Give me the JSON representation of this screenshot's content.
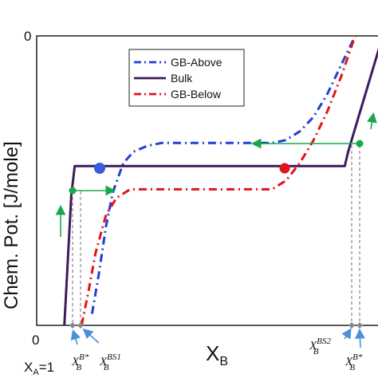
{
  "chart_data": {
    "type": "line",
    "xlabel": "X",
    "xlabel_sub": "B",
    "ylabel": "Chem. Pot. [J/mole]",
    "x_tick_labels": [
      "0"
    ],
    "y_tick_labels": [
      "0"
    ],
    "x_corner_label": "X",
    "x_corner_label_sub": "A",
    "x_corner_label_suffix": "=1",
    "legend": {
      "position": "top-center"
    },
    "series": [
      {
        "name": "GB-Above",
        "color": "#1f3fd6",
        "style": "dash-dot",
        "x": [
          0.16,
          0.18,
          0.2,
          0.22,
          0.25,
          0.28,
          0.32,
          0.36,
          0.5,
          0.6,
          0.68,
          0.72,
          0.76,
          0.8,
          0.84,
          0.88,
          0.92
        ],
        "y": [
          0.04,
          0.18,
          0.34,
          0.46,
          0.56,
          0.6,
          0.62,
          0.63,
          0.63,
          0.63,
          0.63,
          0.64,
          0.67,
          0.72,
          0.8,
          0.9,
          1.0
        ]
      },
      {
        "name": "Bulk",
        "color": "#3d1a5c",
        "style": "solid",
        "x": [
          0.08,
          0.1,
          0.11,
          0.5,
          0.89,
          0.9,
          0.93,
          1.0
        ],
        "y": [
          0.0,
          0.45,
          0.55,
          0.55,
          0.55,
          0.6,
          0.72,
          1.0
        ]
      },
      {
        "name": "GB-Below",
        "color": "#e0141b",
        "style": "dash-dot",
        "x": [
          0.13,
          0.15,
          0.17,
          0.2,
          0.23,
          0.27,
          0.4,
          0.55,
          0.68,
          0.72,
          0.76,
          0.8,
          0.84,
          0.88,
          0.92
        ],
        "y": [
          0.0,
          0.12,
          0.25,
          0.38,
          0.44,
          0.47,
          0.47,
          0.47,
          0.47,
          0.5,
          0.56,
          0.64,
          0.74,
          0.86,
          1.0
        ]
      }
    ],
    "annotations": [
      {
        "base": "X",
        "sub": "B",
        "sup": "B*"
      },
      {
        "base": "X",
        "sub": "B",
        "sup": "BS1"
      },
      {
        "base": "X",
        "sub": "B",
        "sup": "BS2"
      },
      {
        "base": "X",
        "sub": "B",
        "sup": "B*"
      }
    ],
    "xlim": [
      0,
      1
    ],
    "ylim": [
      0,
      1
    ],
    "grid": false
  }
}
